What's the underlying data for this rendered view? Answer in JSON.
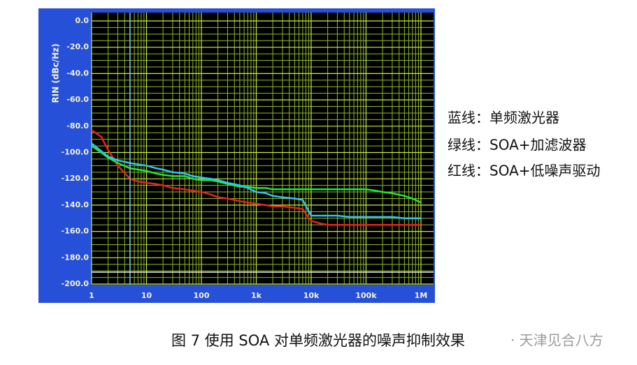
{
  "chart_data": {
    "type": "line",
    "ylabel": "RIN (dBc/Hz)",
    "xscale": "log",
    "grid": true,
    "xlim": [
      1,
      1000000
    ],
    "ylim": [
      -200,
      0
    ],
    "xticks": [
      1,
      10,
      100,
      {
        "value": 1000,
        "label": "1k"
      },
      {
        "value": 10000,
        "label": "10k"
      },
      {
        "value": 100000,
        "label": "100k"
      },
      {
        "value": 1000000,
        "label": "1M"
      }
    ],
    "yticks": [
      {
        "value": 0,
        "label": "0.0"
      },
      {
        "value": -20,
        "label": "-20.0"
      },
      {
        "value": -40,
        "label": "-40.0"
      },
      {
        "value": -60,
        "label": "-60.0"
      },
      {
        "value": -80,
        "label": "-80.0"
      },
      {
        "value": -100,
        "label": "-100.0"
      },
      {
        "value": -120,
        "label": "-120.0"
      },
      {
        "value": -140,
        "label": "-140.0"
      },
      {
        "value": -160,
        "label": "-160.0"
      },
      {
        "value": -180,
        "label": "-180.0"
      },
      {
        "value": -200,
        "label": "-200.0"
      }
    ],
    "x": [
      1,
      1.5,
      2,
      3,
      5,
      7,
      10,
      15,
      20,
      30,
      50,
      70,
      100,
      150,
      200,
      300,
      500,
      700,
      1000,
      1500,
      2000,
      3000,
      5000,
      7000,
      10000,
      15000,
      20000,
      30000,
      50000,
      70000,
      100000,
      150000,
      200000,
      300000,
      500000,
      700000,
      1000000
    ],
    "series": [
      {
        "color": "#e8231a",
        "values": [
          -83,
          -88,
          -98,
          -110,
          -120,
          -122,
          -123,
          -124,
          -125,
          -127,
          -128,
          -129,
          -130,
          -132,
          -134,
          -135,
          -137,
          -138,
          -139,
          -140,
          -141,
          -141,
          -142,
          -143,
          -152,
          -154,
          -155,
          -155,
          -155,
          -155,
          -155,
          -155,
          -155,
          -155,
          -155,
          -155,
          -155
        ]
      },
      {
        "color": "#22e83a",
        "values": [
          -95,
          -100,
          -104,
          -108,
          -112,
          -113,
          -114,
          -116,
          -117,
          -118,
          -118,
          -120,
          -121,
          -121,
          -122,
          -124,
          -126,
          -126,
          -127,
          -127,
          -128,
          -128,
          -128,
          -128,
          -128,
          -128,
          -128,
          -128,
          -128,
          -128,
          -128,
          -129,
          -130,
          -131,
          -133,
          -135,
          -138
        ]
      },
      {
        "color": "#2fc6f0",
        "values": [
          -93,
          -99,
          -103,
          -106,
          -108,
          -109,
          -110,
          -112,
          -113,
          -115,
          -116,
          -118,
          -119,
          -120,
          -121,
          -123,
          -125,
          -127,
          -130,
          -131,
          -133,
          -134,
          -135,
          -136,
          -148,
          -148,
          -148,
          -148,
          -149,
          -149,
          -149,
          -149,
          -149,
          -149,
          -150,
          -150,
          -150
        ]
      }
    ]
  },
  "notes": [
    "蓝线：单频激光器",
    "绿线：SOA+加滤波器",
    "红线：SOA+低噪声驱动"
  ],
  "caption": "图 7 使用 SOA 对单频激光器的噪声抑制效果",
  "watermark": "· 天津见合八方"
}
